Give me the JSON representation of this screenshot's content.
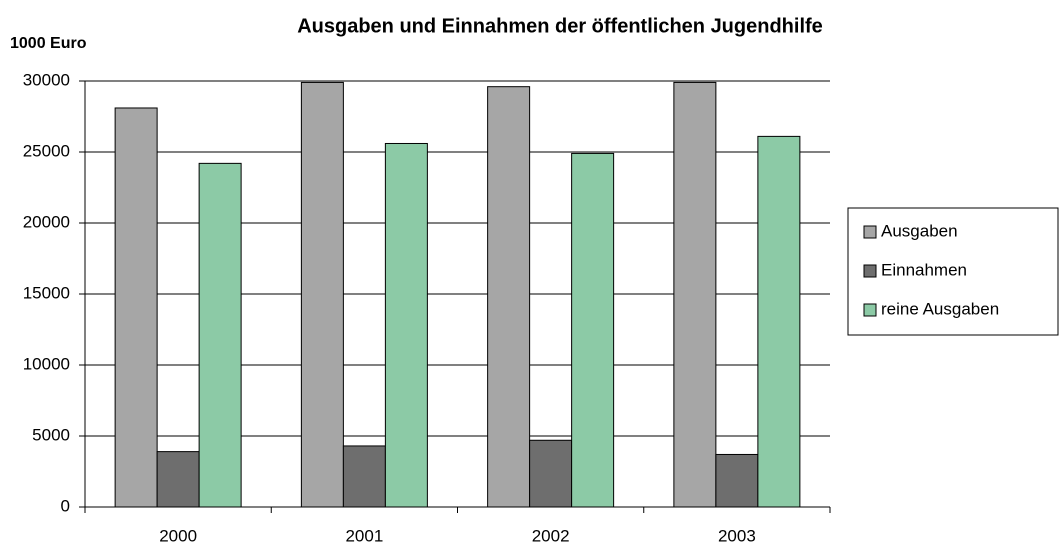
{
  "chart_data": {
    "type": "bar",
    "title": "Ausgaben und Einnahmen der öffentlichen Jugendhilfe",
    "y_label": "1000 Euro",
    "categories": [
      "2000",
      "2001",
      "2002",
      "2003"
    ],
    "series": [
      {
        "name": "Ausgaben",
        "color": "#a6a6a6",
        "values": [
          28100,
          29900,
          29600,
          29900
        ]
      },
      {
        "name": "Einnahmen",
        "color": "#6e6e6e",
        "values": [
          3900,
          4300,
          4700,
          3700
        ]
      },
      {
        "name": "reine Ausgaben",
        "color": "#8ccaa6",
        "values": [
          24200,
          25600,
          24900,
          26100
        ]
      }
    ],
    "ylim": [
      0,
      30000
    ],
    "yticks": [
      0,
      5000,
      10000,
      15000,
      20000,
      25000,
      30000
    ],
    "grid": true,
    "legend": "right"
  }
}
